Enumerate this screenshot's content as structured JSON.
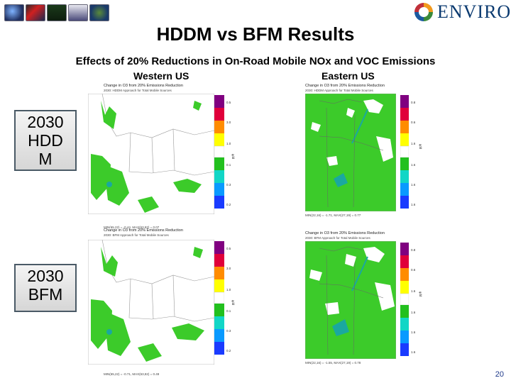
{
  "header": {
    "logo_text": "ENVIRON",
    "thumbnails": [
      "data-globe",
      "city-map",
      "plant",
      "car-icon",
      "globe"
    ]
  },
  "title": "HDDM vs BFM Results",
  "subtitle": "Effects of 20% Reductions in On-Road Mobile NOx and VOC Emissions",
  "columns": {
    "west": "Western US",
    "east": "Eastern US"
  },
  "rows": {
    "hddm": "2030\nHDD\nM",
    "bfm": "2030\nBFM"
  },
  "panels": {
    "w_hddm": {
      "title": "Change in O3 from 20% Emissions Reduction",
      "sub": "2030: HDDM Approach for Total Mobile Sources",
      "foot": "MIN(65,22) = -0.44, MAX(63,82) = 0.07",
      "ticks": [
        "0.5",
        "3.0",
        "1.0",
        "0.1",
        "0.3",
        "0.2"
      ]
    },
    "e_hddm": {
      "title": "Change in O3 from 20% Emissions Reduction",
      "sub": "2030: HDDM Approach for Total Mobile Sources",
      "foot": "MIN(22,16) = -1.71, MAX(27,19) = 0.77",
      "ticks": [
        "0.8",
        "0.6",
        "1.6",
        "1.6",
        "1.6",
        "1.6"
      ]
    },
    "w_bfm": {
      "title": "Change in O3 from 20% Emissions Reduction",
      "sub": "2030: BFM Approach for Total Mobile Sources",
      "foot": "MIN(65,22) = -0.71, MAX(63,82) = 0.49",
      "ticks": [
        "0.5",
        "3.0",
        "1.0",
        "0.1",
        "0.3",
        "0.2"
      ]
    },
    "e_bfm": {
      "title": "Change in O3 from 20% Emissions Reduction",
      "sub": "2030: BFM Approach for Total Mobile Sources",
      "foot": "MIN(22,16) = -1.55, MAX(27,19) = 0.78",
      "ticks": [
        "0.8",
        "0.6",
        "1.6",
        "1.6",
        "1.6",
        "1.6"
      ]
    }
  },
  "units": "ppb",
  "colorbar_colors": [
    "#800080",
    "#e0003a",
    "#ff8c00",
    "#ffff00",
    "#ffffff",
    "#22c01e",
    "#12d6c6",
    "#0a9aff",
    "#1a3bff"
  ],
  "map_colors": {
    "neutral": "#ffffff",
    "decrease": "#3ccb2a",
    "strong": "#1aa8a0"
  },
  "page_number": "20"
}
